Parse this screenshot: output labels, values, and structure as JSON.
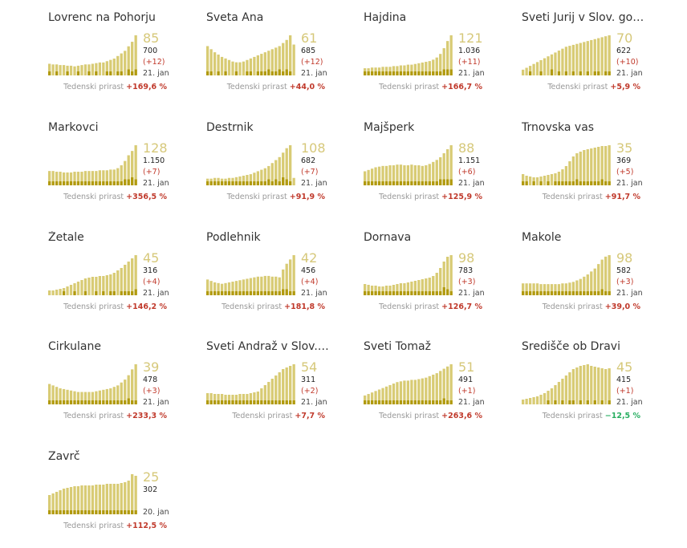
{
  "growth_label": "Tedenski prirast",
  "colors": {
    "bar_light": "#d8cb74",
    "bar_dark": "#b19a0e",
    "value_text": "#d6c87a",
    "positive_growth": "#c0392b",
    "negative_growth": "#27ae60"
  },
  "chart_data": [
    {
      "type": "bar",
      "title": "Lovrenc na Pohorju",
      "value": "85",
      "total": "700",
      "delta": "(+12)",
      "date": "21. jan",
      "growth": "+169,6 %",
      "values": [
        18,
        17,
        17,
        16,
        16,
        15,
        15,
        14,
        15,
        16,
        17,
        17,
        18,
        19,
        20,
        20,
        22,
        24,
        26,
        30,
        34,
        38,
        45,
        52,
        62
      ],
      "daily": [
        1,
        0,
        1,
        0,
        0,
        1,
        0,
        0,
        1,
        0,
        0,
        1,
        0,
        1,
        0,
        0,
        1,
        1,
        0,
        1,
        1,
        0,
        2,
        1,
        2
      ]
    },
    {
      "type": "bar",
      "title": "Sveta Ana",
      "value": "61",
      "total": "685",
      "delta": "(+12)",
      "date": "21. jan",
      "growth": "+44,0 %",
      "values": [
        38,
        34,
        30,
        27,
        24,
        22,
        20,
        18,
        17,
        17,
        18,
        20,
        22,
        24,
        26,
        28,
        30,
        32,
        34,
        36,
        38,
        42,
        46,
        52,
        40
      ],
      "daily": [
        1,
        1,
        0,
        1,
        0,
        1,
        0,
        0,
        1,
        0,
        0,
        1,
        1,
        0,
        1,
        1,
        1,
        2,
        1,
        1,
        2,
        1,
        2,
        1,
        0
      ]
    },
    {
      "type": "bar",
      "title": "Hajdina",
      "value": "121",
      "total": "1.036",
      "delta": "(+11)",
      "date": "21. jan",
      "growth": "+166,7 %",
      "values": [
        10,
        10,
        11,
        11,
        11,
        12,
        12,
        12,
        13,
        13,
        14,
        14,
        15,
        15,
        16,
        17,
        18,
        19,
        20,
        22,
        25,
        30,
        38,
        48,
        56
      ],
      "daily": [
        1,
        1,
        1,
        1,
        1,
        1,
        1,
        1,
        1,
        1,
        1,
        1,
        1,
        1,
        1,
        1,
        1,
        1,
        1,
        1,
        1,
        1,
        2,
        2,
        2
      ]
    },
    {
      "type": "bar",
      "title": "Sveti Jurij v Slov. go…",
      "value": "70",
      "total": "622",
      "delta": "(+10)",
      "date": "21. jan",
      "growth": "+5,9 %",
      "values": [
        6,
        8,
        10,
        12,
        14,
        16,
        18,
        20,
        22,
        24,
        26,
        28,
        30,
        31,
        32,
        33,
        34,
        35,
        36,
        37,
        38,
        39,
        40,
        41,
        42
      ],
      "daily": [
        0,
        0,
        1,
        0,
        0,
        1,
        0,
        0,
        2,
        0,
        1,
        0,
        1,
        0,
        1,
        0,
        1,
        0,
        1,
        0,
        1,
        1,
        0,
        1,
        1
      ]
    },
    {
      "type": "bar",
      "title": "Markovci",
      "value": "128",
      "total": "1.150",
      "delta": "(+7)",
      "date": "21. jan",
      "growth": "+356,5 %",
      "values": [
        20,
        20,
        19,
        19,
        18,
        18,
        18,
        19,
        19,
        19,
        20,
        20,
        20,
        20,
        21,
        21,
        21,
        22,
        22,
        24,
        28,
        34,
        42,
        48,
        56
      ],
      "daily": [
        1,
        1,
        1,
        1,
        1,
        1,
        1,
        1,
        1,
        1,
        1,
        1,
        1,
        1,
        1,
        1,
        1,
        1,
        1,
        1,
        1,
        2,
        2,
        3,
        2
      ]
    },
    {
      "type": "bar",
      "title": "Destrnik",
      "value": "108",
      "total": "682",
      "delta": "(+7)",
      "date": "21. jan",
      "growth": "+91,9 %",
      "values": [
        9,
        9,
        10,
        10,
        9,
        9,
        10,
        10,
        11,
        12,
        13,
        14,
        15,
        17,
        19,
        21,
        23,
        26,
        30,
        34,
        38,
        44,
        50,
        54,
        10
      ],
      "daily": [
        1,
        1,
        1,
        1,
        1,
        1,
        1,
        1,
        1,
        1,
        1,
        1,
        1,
        1,
        1,
        1,
        1,
        2,
        1,
        2,
        1,
        3,
        2,
        1,
        0
      ]
    },
    {
      "type": "bar",
      "title": "Majšperk",
      "value": "88",
      "total": "1.151",
      "delta": "(+6)",
      "date": "21. jan",
      "growth": "+125,9 %",
      "values": [
        21,
        23,
        25,
        27,
        28,
        29,
        29,
        30,
        30,
        31,
        31,
        30,
        30,
        31,
        30,
        30,
        29,
        30,
        32,
        35,
        38,
        42,
        48,
        54,
        60
      ],
      "daily": [
        1,
        1,
        1,
        1,
        1,
        1,
        1,
        1,
        1,
        1,
        1,
        1,
        1,
        1,
        1,
        1,
        1,
        1,
        1,
        1,
        1,
        2,
        2,
        2,
        2
      ]
    },
    {
      "type": "bar",
      "title": "Trnovska vas",
      "value": "35",
      "total": "369",
      "delta": "(+5)",
      "date": "21. jan",
      "growth": "+91,7 %",
      "values": [
        14,
        12,
        11,
        10,
        10,
        11,
        12,
        13,
        14,
        15,
        17,
        20,
        24,
        30,
        36,
        40,
        42,
        44,
        45,
        46,
        47,
        48,
        49,
        49,
        50
      ],
      "daily": [
        1,
        1,
        0,
        1,
        0,
        1,
        0,
        1,
        0,
        1,
        1,
        1,
        1,
        1,
        1,
        2,
        1,
        1,
        1,
        1,
        1,
        1,
        2,
        1,
        1
      ]
    },
    {
      "type": "bar",
      "title": "Žetale",
      "value": "45",
      "total": "316",
      "delta": "(+4)",
      "date": "21. jan",
      "growth": "+146,2 %",
      "values": [
        6,
        6,
        7,
        8,
        9,
        11,
        13,
        15,
        17,
        19,
        21,
        22,
        23,
        23,
        24,
        24,
        25,
        26,
        28,
        31,
        34,
        38,
        42,
        46,
        50
      ],
      "daily": [
        0,
        0,
        0,
        0,
        1,
        0,
        0,
        1,
        0,
        0,
        1,
        0,
        0,
        1,
        0,
        1,
        0,
        1,
        1,
        0,
        1,
        1,
        1,
        1,
        2
      ]
    },
    {
      "type": "bar",
      "title": "Podlehnik",
      "value": "42",
      "total": "456",
      "delta": "(+4)",
      "date": "21. jan",
      "growth": "+181,8 %",
      "values": [
        22,
        20,
        18,
        17,
        16,
        17,
        18,
        19,
        20,
        21,
        22,
        23,
        24,
        25,
        26,
        26,
        27,
        27,
        26,
        26,
        25,
        36,
        44,
        50,
        56
      ],
      "daily": [
        1,
        1,
        1,
        1,
        1,
        1,
        1,
        1,
        1,
        1,
        1,
        1,
        1,
        1,
        1,
        1,
        1,
        1,
        1,
        1,
        1,
        2,
        2,
        1,
        1
      ]
    },
    {
      "type": "bar",
      "title": "Dornava",
      "value": "98",
      "total": "783",
      "delta": "(+3)",
      "date": "21. jan",
      "growth": "+126,7 %",
      "values": [
        14,
        13,
        12,
        12,
        11,
        11,
        12,
        12,
        13,
        14,
        15,
        15,
        16,
        17,
        18,
        19,
        20,
        21,
        22,
        24,
        28,
        34,
        42,
        48,
        50
      ],
      "daily": [
        1,
        1,
        1,
        1,
        1,
        1,
        1,
        1,
        1,
        1,
        1,
        1,
        1,
        1,
        1,
        1,
        1,
        1,
        1,
        1,
        1,
        1,
        3,
        2,
        1
      ]
    },
    {
      "type": "bar",
      "title": "Makole",
      "value": "98",
      "total": "582",
      "delta": "(+3)",
      "date": "21. jan",
      "growth": "+39,0 %",
      "values": [
        16,
        16,
        16,
        16,
        16,
        15,
        15,
        15,
        15,
        15,
        15,
        16,
        16,
        17,
        18,
        20,
        22,
        25,
        28,
        32,
        36,
        42,
        48,
        52,
        54
      ],
      "daily": [
        1,
        1,
        1,
        1,
        1,
        1,
        1,
        1,
        1,
        1,
        1,
        1,
        1,
        1,
        1,
        1,
        1,
        1,
        1,
        1,
        1,
        1,
        2,
        1,
        1
      ]
    },
    {
      "type": "bar",
      "title": "Cirkulane",
      "value": "39",
      "total": "478",
      "delta": "(+3)",
      "date": "21. jan",
      "growth": "+233,3 %",
      "values": [
        28,
        26,
        24,
        22,
        21,
        20,
        19,
        18,
        17,
        17,
        17,
        17,
        17,
        18,
        19,
        20,
        21,
        22,
        24,
        26,
        30,
        34,
        40,
        48,
        55
      ],
      "daily": [
        1,
        1,
        1,
        1,
        1,
        1,
        1,
        1,
        1,
        1,
        1,
        1,
        1,
        1,
        1,
        1,
        1,
        1,
        1,
        1,
        1,
        1,
        2,
        1,
        1
      ]
    },
    {
      "type": "bar",
      "title": "Sveti Andraž v Slov.…",
      "value": "54",
      "total": "311",
      "delta": "(+2)",
      "date": "21. jan",
      "growth": "+7,7 %",
      "values": [
        14,
        14,
        13,
        13,
        13,
        12,
        12,
        12,
        12,
        13,
        13,
        13,
        14,
        15,
        16,
        20,
        24,
        28,
        32,
        36,
        40,
        44,
        46,
        48,
        50
      ],
      "daily": [
        1,
        1,
        1,
        1,
        1,
        1,
        1,
        1,
        1,
        1,
        1,
        1,
        1,
        1,
        1,
        1,
        1,
        1,
        1,
        1,
        1,
        1,
        1,
        1,
        1
      ]
    },
    {
      "type": "bar",
      "title": "Sveti Tomaž",
      "value": "51",
      "total": "491",
      "delta": "(+1)",
      "date": "21. jan",
      "growth": "+263,6 %",
      "values": [
        12,
        14,
        16,
        18,
        20,
        22,
        24,
        26,
        28,
        30,
        31,
        32,
        32,
        33,
        33,
        34,
        35,
        36,
        38,
        40,
        42,
        45,
        48,
        51,
        54
      ],
      "daily": [
        1,
        1,
        1,
        1,
        1,
        1,
        1,
        1,
        1,
        1,
        1,
        1,
        1,
        1,
        1,
        1,
        1,
        1,
        1,
        1,
        1,
        1,
        2,
        1,
        1
      ]
    },
    {
      "type": "bar",
      "title": "Središče ob Dravi",
      "value": "45",
      "total": "415",
      "delta": "(+1)",
      "date": "21. jan",
      "growth": "−12,5 %",
      "values": [
        6,
        7,
        8,
        9,
        10,
        12,
        14,
        17,
        20,
        24,
        28,
        32,
        36,
        40,
        44,
        46,
        48,
        49,
        50,
        48,
        47,
        46,
        45,
        44,
        45
      ],
      "daily": [
        0,
        0,
        0,
        0,
        0,
        0,
        0,
        1,
        0,
        1,
        0,
        1,
        0,
        1,
        1,
        0,
        1,
        0,
        1,
        0,
        1,
        0,
        1,
        0,
        1
      ]
    },
    {
      "type": "bar",
      "title": "Zavrč",
      "value": "25",
      "total": "302",
      "delta": "",
      "date": "20. jan",
      "growth": "+112,5 %",
      "values": [
        24,
        26,
        28,
        30,
        32,
        33,
        34,
        35,
        35,
        36,
        36,
        36,
        36,
        37,
        37,
        37,
        38,
        38,
        38,
        38,
        39,
        40,
        42,
        50,
        48
      ],
      "daily": [
        1,
        1,
        1,
        1,
        1,
        1,
        1,
        1,
        1,
        1,
        1,
        1,
        1,
        1,
        1,
        1,
        1,
        1,
        1,
        1,
        1,
        1,
        1,
        1,
        1
      ]
    }
  ]
}
